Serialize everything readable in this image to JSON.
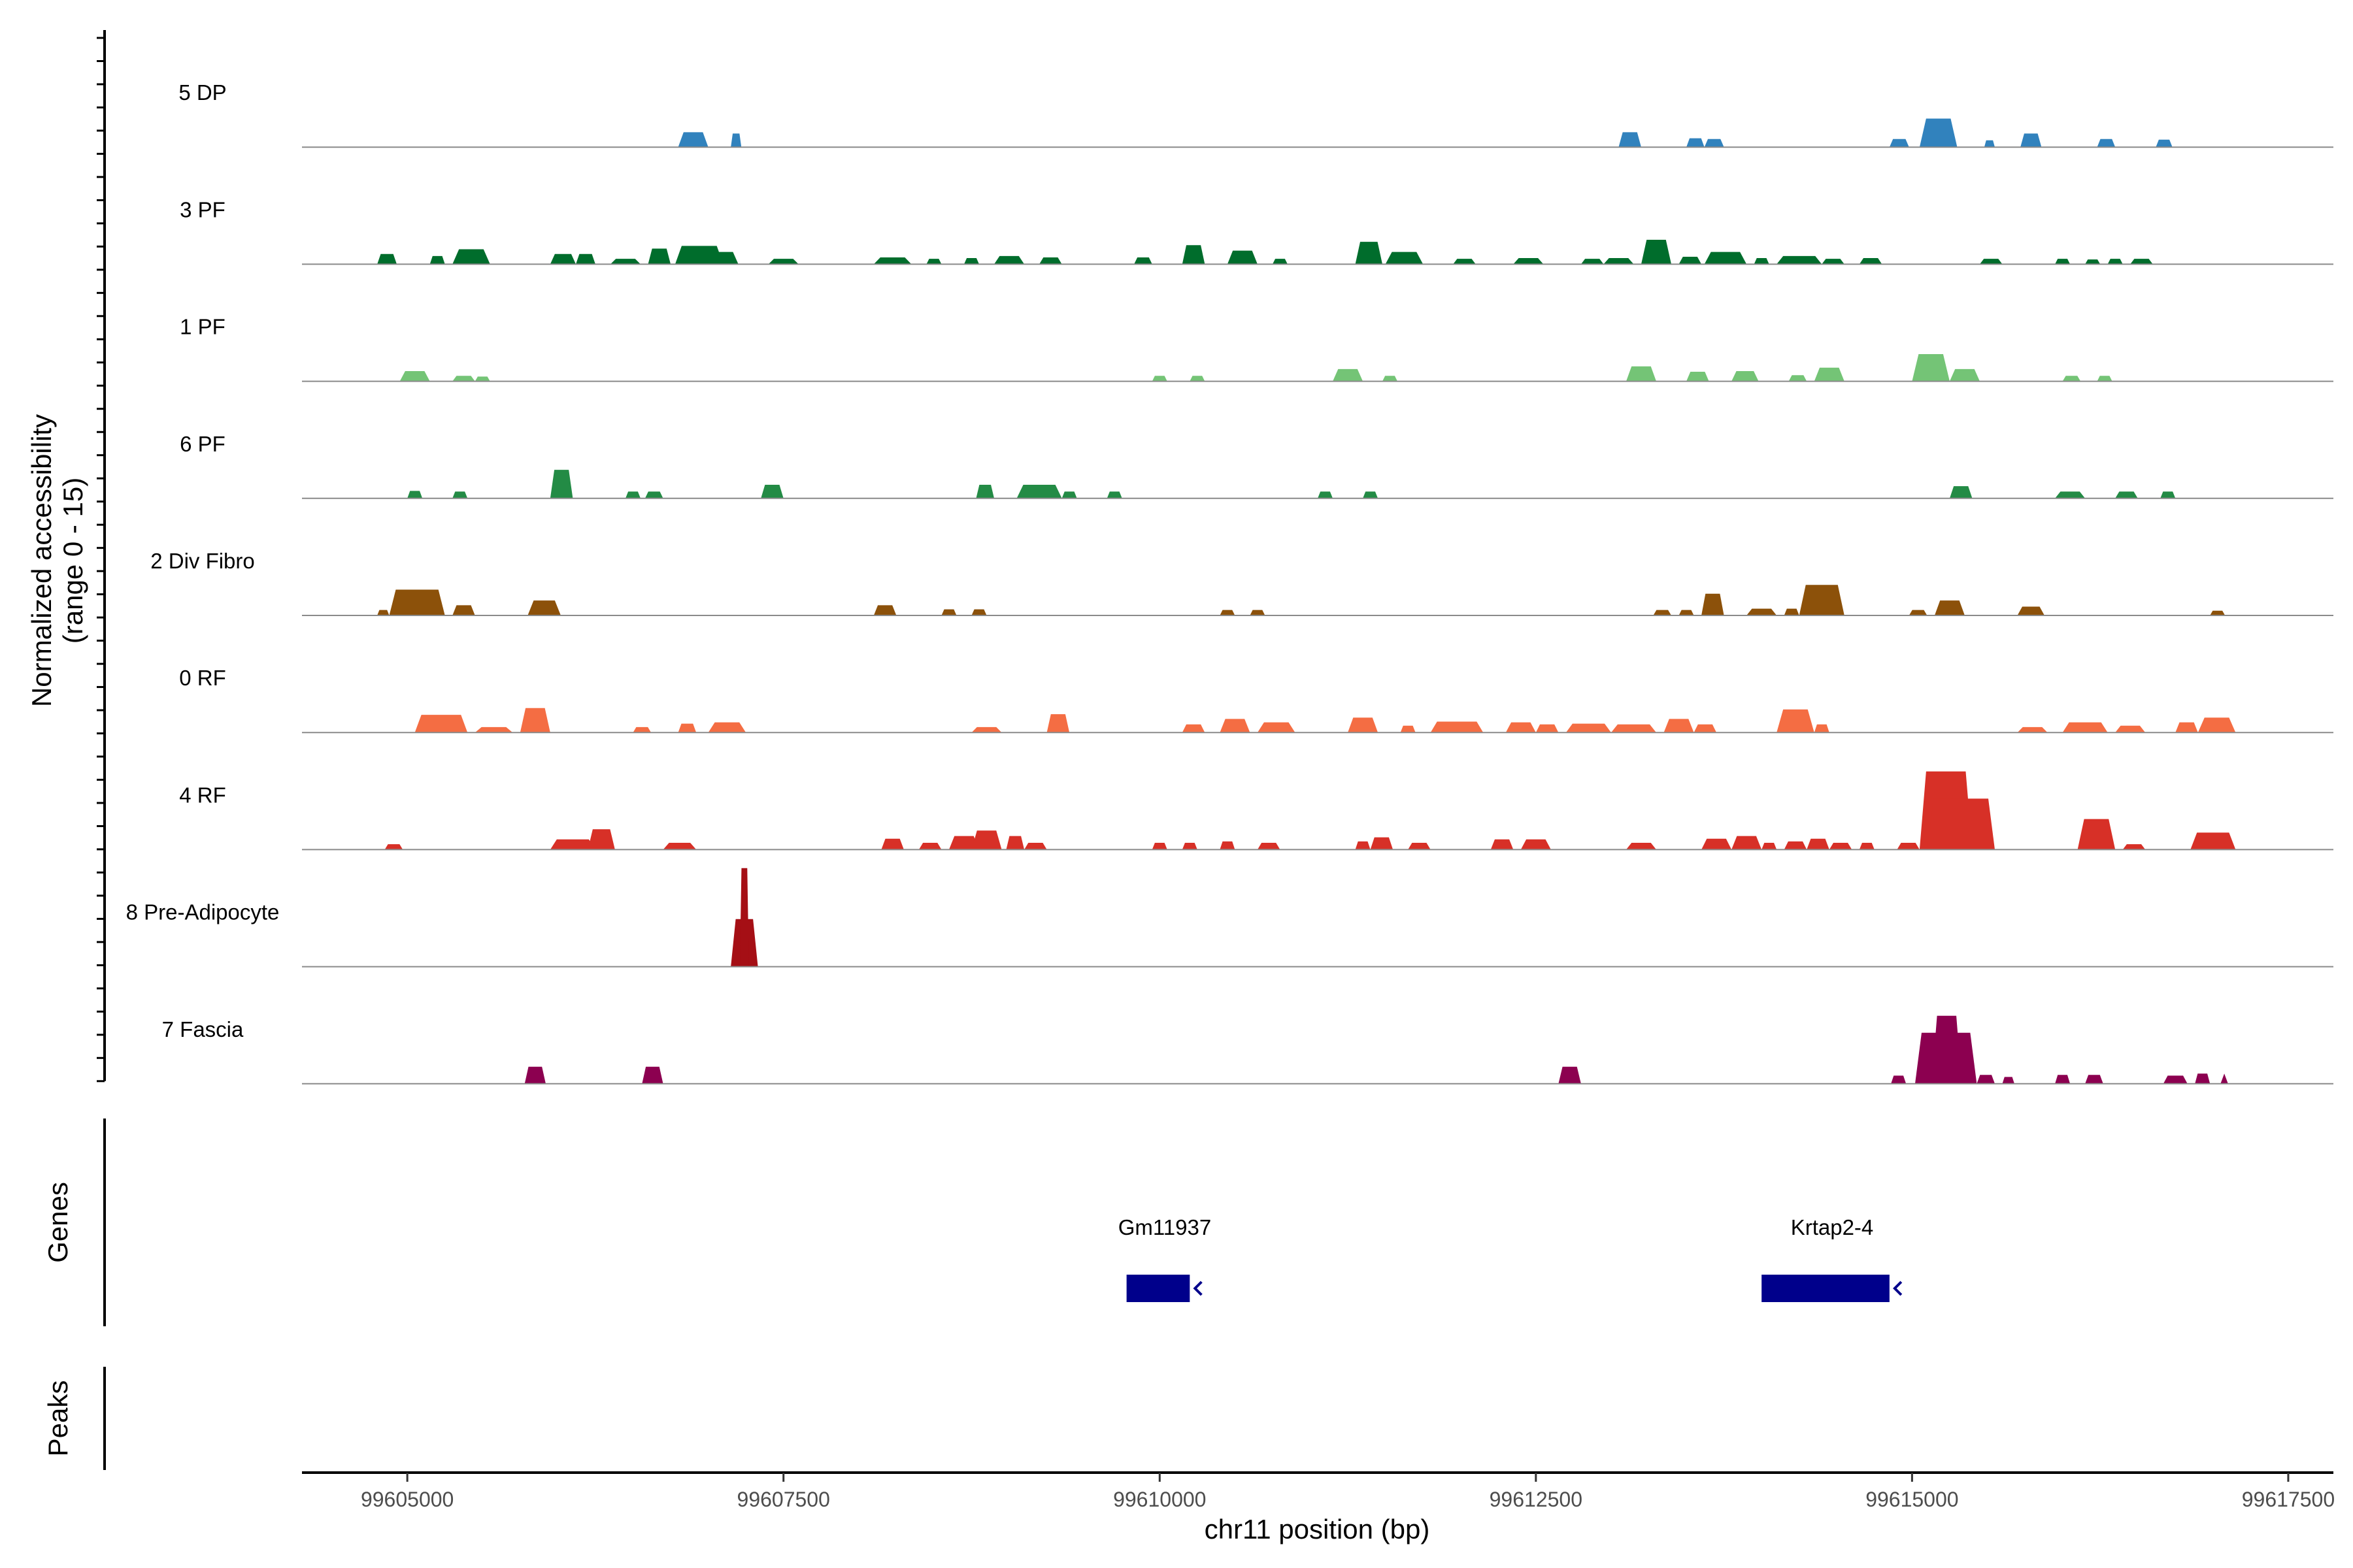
{
  "chart_data": {
    "type": "area",
    "chromosome": "chr11",
    "xlabel": "chr11 position (bp)",
    "xlim": [
      99604300,
      99617800
    ],
    "xticks": [
      99605000,
      99607500,
      99610000,
      99612500,
      99615000,
      99617500
    ],
    "xtick_labels": [
      "99605000",
      "99607500",
      "99610000",
      "99612500",
      "99615000",
      "99617500"
    ],
    "ylabel_line1": "Normalized accessibility",
    "ylabel_line2": "(range 0 - 15)",
    "ylim": [
      0,
      15
    ],
    "panel_titles": {
      "genes": "Genes",
      "peaks": "Peaks"
    },
    "tracks": [
      {
        "name": "5 DP",
        "color": "#3182BD",
        "peaks": [
          [
            99606800,
            99607000,
            2.2
          ],
          [
            99607150,
            99607220,
            2.0
          ],
          [
            99613050,
            99613200,
            2.2
          ],
          [
            99613500,
            99613620,
            1.3
          ],
          [
            99613620,
            99613750,
            1.2
          ],
          [
            99614850,
            99614980,
            1.2
          ],
          [
            99615050,
            99615300,
            4.2
          ],
          [
            99615480,
            99615550,
            1.0
          ],
          [
            99615720,
            99615860,
            2.0
          ],
          [
            99616230,
            99616350,
            1.2
          ],
          [
            99616620,
            99616730,
            1.1
          ]
        ]
      },
      {
        "name": "3 PF",
        "color": "#006D2C",
        "peaks": [
          [
            99604800,
            99604930,
            1.5
          ],
          [
            99605150,
            99605250,
            1.2
          ],
          [
            99605300,
            99605550,
            2.2
          ],
          [
            99605950,
            99606120,
            1.5
          ],
          [
            99606120,
            99606250,
            1.5
          ],
          [
            99606350,
            99606550,
            0.8
          ],
          [
            99606600,
            99606750,
            2.3
          ],
          [
            99606780,
            99607100,
            2.7
          ],
          [
            99607000,
            99607200,
            1.8
          ],
          [
            99607400,
            99607600,
            0.8
          ],
          [
            99608100,
            99608350,
            1.0
          ],
          [
            99608450,
            99608550,
            0.8
          ],
          [
            99608700,
            99608800,
            0.9
          ],
          [
            99608900,
            99609100,
            1.2
          ],
          [
            99609200,
            99609350,
            1.0
          ],
          [
            99609830,
            99609950,
            1.0
          ],
          [
            99610150,
            99610300,
            2.8
          ],
          [
            99610450,
            99610650,
            2.0
          ],
          [
            99610750,
            99610850,
            0.8
          ],
          [
            99611300,
            99611480,
            3.3
          ],
          [
            99611500,
            99611750,
            1.8
          ],
          [
            99611950,
            99612100,
            0.8
          ],
          [
            99612350,
            99612550,
            0.9
          ],
          [
            99612800,
            99612950,
            0.8
          ],
          [
            99612950,
            99613150,
            0.9
          ],
          [
            99613200,
            99613400,
            3.6
          ],
          [
            99613450,
            99613600,
            1.1
          ],
          [
            99613620,
            99613900,
            1.8
          ],
          [
            99613950,
            99614050,
            0.9
          ],
          [
            99614100,
            99614400,
            1.2
          ],
          [
            99614400,
            99614550,
            0.8
          ],
          [
            99614650,
            99614800,
            0.9
          ],
          [
            99615450,
            99615600,
            0.8
          ],
          [
            99615950,
            99616050,
            0.8
          ],
          [
            99616150,
            99616250,
            0.7
          ],
          [
            99616300,
            99616400,
            0.8
          ],
          [
            99616450,
            99616600,
            0.8
          ]
        ]
      },
      {
        "name": "1 PF",
        "color": "#74C476",
        "peaks": [
          [
            99604950,
            99605150,
            1.5
          ],
          [
            99605300,
            99605450,
            0.8
          ],
          [
            99605450,
            99605550,
            0.7
          ],
          [
            99609950,
            99610050,
            0.8
          ],
          [
            99610200,
            99610300,
            0.8
          ],
          [
            99611150,
            99611350,
            1.8
          ],
          [
            99611480,
            99611580,
            0.8
          ],
          [
            99613100,
            99613300,
            2.2
          ],
          [
            99613500,
            99613650,
            1.4
          ],
          [
            99613800,
            99613980,
            1.5
          ],
          [
            99614180,
            99614300,
            0.9
          ],
          [
            99614350,
            99614550,
            2.0
          ],
          [
            99615000,
            99615250,
            4.0
          ],
          [
            99615250,
            99615450,
            1.8
          ],
          [
            99616000,
            99616120,
            0.8
          ],
          [
            99616230,
            99616330,
            0.8
          ]
        ]
      },
      {
        "name": "6 PF",
        "color": "#238B45",
        "peaks": [
          [
            99605000,
            99605100,
            1.1
          ],
          [
            99605300,
            99605400,
            1.0
          ],
          [
            99605950,
            99606100,
            4.2
          ],
          [
            99606450,
            99606550,
            1.0
          ],
          [
            99606580,
            99606700,
            1.0
          ],
          [
            99607350,
            99607500,
            2.0
          ],
          [
            99608780,
            99608900,
            2.0
          ],
          [
            99609050,
            99609350,
            2.0
          ],
          [
            99609350,
            99609450,
            1.0
          ],
          [
            99609650,
            99609750,
            1.0
          ],
          [
            99611050,
            99611150,
            1.0
          ],
          [
            99611350,
            99611450,
            1.0
          ],
          [
            99615250,
            99615400,
            1.8
          ],
          [
            99615950,
            99616150,
            1.0
          ],
          [
            99616350,
            99616500,
            1.0
          ],
          [
            99616650,
            99616750,
            1.0
          ]
        ]
      },
      {
        "name": "2 Div Fibro",
        "color": "#8C510A",
        "peaks": [
          [
            99604800,
            99604880,
            0.8
          ],
          [
            99604880,
            99605250,
            3.8
          ],
          [
            99605300,
            99605450,
            1.5
          ],
          [
            99605800,
            99606020,
            2.2
          ],
          [
            99608100,
            99608250,
            1.5
          ],
          [
            99608550,
            99608650,
            0.9
          ],
          [
            99608750,
            99608850,
            0.9
          ],
          [
            99610400,
            99610500,
            0.8
          ],
          [
            99610600,
            99610700,
            0.8
          ],
          [
            99613280,
            99613400,
            0.8
          ],
          [
            99613450,
            99613550,
            0.8
          ],
          [
            99613600,
            99613750,
            3.2
          ],
          [
            99613900,
            99614100,
            1.0
          ],
          [
            99614150,
            99614250,
            1.0
          ],
          [
            99614250,
            99614550,
            4.5
          ],
          [
            99614980,
            99615100,
            0.8
          ],
          [
            99615150,
            99615350,
            2.2
          ],
          [
            99615700,
            99615880,
            1.3
          ],
          [
            99616980,
            99617080,
            0.7
          ]
        ]
      },
      {
        "name": "0 RF",
        "color": "#F46D43",
        "peaks": [
          [
            99605050,
            99605400,
            2.6
          ],
          [
            99605450,
            99605700,
            0.8
          ],
          [
            99605750,
            99605950,
            3.6
          ],
          [
            99606500,
            99606620,
            0.8
          ],
          [
            99606800,
            99606920,
            1.3
          ],
          [
            99607000,
            99607250,
            1.5
          ],
          [
            99608750,
            99608950,
            0.8
          ],
          [
            99609250,
            99609400,
            2.7
          ],
          [
            99610150,
            99610300,
            1.2
          ],
          [
            99610400,
            99610600,
            2.0
          ],
          [
            99610650,
            99610900,
            1.5
          ],
          [
            99611250,
            99611450,
            2.2
          ],
          [
            99611600,
            99611700,
            1.0
          ],
          [
            99611800,
            99612150,
            1.6
          ],
          [
            99612300,
            99612500,
            1.5
          ],
          [
            99612500,
            99612650,
            1.2
          ],
          [
            99612700,
            99613000,
            1.3
          ],
          [
            99613000,
            99613300,
            1.2
          ],
          [
            99613350,
            99613550,
            2.0
          ],
          [
            99613550,
            99613700,
            1.2
          ],
          [
            99614100,
            99614350,
            3.4
          ],
          [
            99614350,
            99614450,
            1.2
          ],
          [
            99615700,
            99615900,
            0.8
          ],
          [
            99616000,
            99616300,
            1.5
          ],
          [
            99616350,
            99616550,
            1.0
          ],
          [
            99616750,
            99616900,
            1.5
          ],
          [
            99616900,
            99617150,
            2.2
          ]
        ]
      },
      {
        "name": "4 RF",
        "color": "#D73027",
        "peaks": [
          [
            99604850,
            99604970,
            0.8
          ],
          [
            99605950,
            99606250,
            1.5
          ],
          [
            99606200,
            99606380,
            3.0
          ],
          [
            99606700,
            99606920,
            1.0
          ],
          [
            99608150,
            99608300,
            1.6
          ],
          [
            99608400,
            99608550,
            1.0
          ],
          [
            99608600,
            99608800,
            2.0
          ],
          [
            99608750,
            99608950,
            2.8
          ],
          [
            99608980,
            99609100,
            2.0
          ],
          [
            99609100,
            99609250,
            1.0
          ],
          [
            99609950,
            99610050,
            1.0
          ],
          [
            99610150,
            99610250,
            1.0
          ],
          [
            99610400,
            99610500,
            1.2
          ],
          [
            99610650,
            99610800,
            1.0
          ],
          [
            99611300,
            99611400,
            1.2
          ],
          [
            99611400,
            99611550,
            1.8
          ],
          [
            99611650,
            99611800,
            1.0
          ],
          [
            99612200,
            99612350,
            1.5
          ],
          [
            99612400,
            99612600,
            1.5
          ],
          [
            99613100,
            99613300,
            1.0
          ],
          [
            99613600,
            99613800,
            1.6
          ],
          [
            99613800,
            99614000,
            2.0
          ],
          [
            99614000,
            99614100,
            1.0
          ],
          [
            99614150,
            99614300,
            1.2
          ],
          [
            99614300,
            99614450,
            1.6
          ],
          [
            99614450,
            99614600,
            1.0
          ],
          [
            99614650,
            99614750,
            1.0
          ],
          [
            99614900,
            99615050,
            1.0
          ],
          [
            99615050,
            99615400,
            11.5
          ],
          [
            99615100,
            99615550,
            7.5
          ],
          [
            99616100,
            99616350,
            4.5
          ],
          [
            99616400,
            99616550,
            0.8
          ],
          [
            99616850,
            99617150,
            2.5
          ]
        ]
      },
      {
        "name": "8 Pre-Adipocyte",
        "color": "#A50F15",
        "peaks": [
          [
            99607150,
            99607330,
            7.0
          ],
          [
            99607210,
            99607270,
            14.5
          ]
        ]
      },
      {
        "name": "7 Fascia",
        "color": "#8C0050",
        "peaks": [
          [
            99605780,
            99605920,
            2.5
          ],
          [
            99606560,
            99606700,
            2.5
          ],
          [
            99612650,
            99612800,
            2.5
          ],
          [
            99614860,
            99614960,
            1.2
          ],
          [
            99615020,
            99615430,
            7.5
          ],
          [
            99615130,
            99615330,
            10.0
          ],
          [
            99615430,
            99615550,
            1.3
          ],
          [
            99615600,
            99615680,
            1.0
          ],
          [
            99615950,
            99616050,
            1.3
          ],
          [
            99616150,
            99616270,
            1.3
          ],
          [
            99616670,
            99616830,
            1.2
          ],
          [
            99616880,
            99616980,
            1.5
          ],
          [
            99617050,
            99617100,
            1.5
          ]
        ]
      }
    ],
    "genes": [
      {
        "name": "Gm11937",
        "start": 99609780,
        "end": 99610200,
        "strand": "-",
        "color": "#00008B"
      },
      {
        "name": "Krtap2-4",
        "start": 99614000,
        "end": 99614850,
        "strand": "-",
        "color": "#00008B"
      }
    ]
  }
}
